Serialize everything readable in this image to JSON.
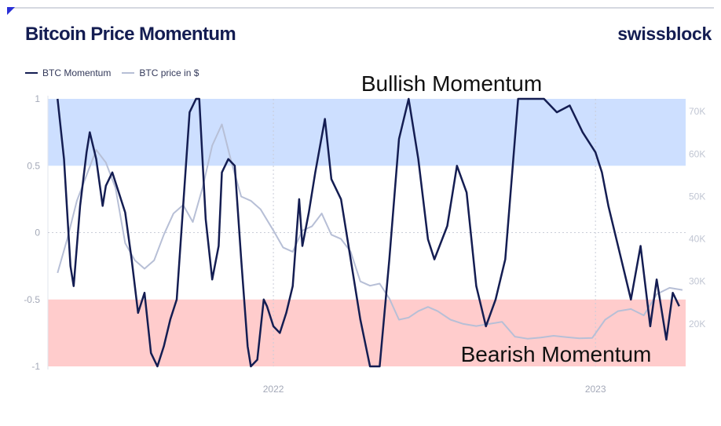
{
  "header": {
    "title": "Bitcoin Price Momentum",
    "brand": "swissblock"
  },
  "legend": [
    {
      "label": "BTC Momentum",
      "color": "#141d52"
    },
    {
      "label": "BTC price in $",
      "color": "#b7bfd6"
    }
  ],
  "colors": {
    "bullish_zone": "#cddfff",
    "bearish_zone": "#ffcccc",
    "momentum_line": "#141d52",
    "price_line": "#b7bfd6"
  },
  "chart_data": {
    "type": "line",
    "annotations": {
      "top": "Bullish Momentum",
      "bottom": "Bearish Momentum"
    },
    "zones": [
      {
        "name": "Bullish Momentum",
        "from": 0.5,
        "to": 1
      },
      {
        "name": "Bearish Momentum",
        "from": -1,
        "to": -0.5
      }
    ],
    "x_range": [
      2021.3,
      2023.28
    ],
    "x_ticks": [
      {
        "value": 2022.0,
        "label": "2022"
      },
      {
        "value": 2023.0,
        "label": "2023"
      }
    ],
    "y_left": {
      "range": [
        -1,
        1
      ],
      "ticks": [
        {
          "value": 1,
          "label": "1"
        },
        {
          "value": 0.5,
          "label": "0.5"
        },
        {
          "value": 0,
          "label": "0"
        },
        {
          "value": -0.5,
          "label": "-0.5"
        },
        {
          "value": -1,
          "label": "-1"
        }
      ]
    },
    "y_right": {
      "range": [
        10000,
        73000
      ],
      "ticks": [
        {
          "value": 20000,
          "label": "20K"
        },
        {
          "value": 30000,
          "label": "30K"
        },
        {
          "value": 40000,
          "label": "40K"
        },
        {
          "value": 50000,
          "label": "50K"
        },
        {
          "value": 60000,
          "label": "60K"
        },
        {
          "value": 70000,
          "label": "70K"
        }
      ]
    },
    "grid": {
      "vertical": true,
      "zero_line": true
    },
    "series": [
      {
        "name": "BTC Momentum",
        "axis": "left",
        "x": [
          2021.33,
          2021.35,
          2021.37,
          2021.38,
          2021.4,
          2021.42,
          2021.43,
          2021.45,
          2021.47,
          2021.48,
          2021.5,
          2021.52,
          2021.54,
          2021.56,
          2021.58,
          2021.6,
          2021.62,
          2021.64,
          2021.66,
          2021.68,
          2021.7,
          2021.72,
          2021.74,
          2021.76,
          2021.77,
          2021.79,
          2021.81,
          2021.83,
          2021.84,
          2021.86,
          2021.88,
          2021.9,
          2021.92,
          2021.93,
          2021.95,
          2021.97,
          2021.98,
          2022.0,
          2022.02,
          2022.04,
          2022.06,
          2022.08,
          2022.09,
          2022.11,
          2022.13,
          2022.16,
          2022.18,
          2022.21,
          2022.24,
          2022.27,
          2022.3,
          2022.33,
          2022.36,
          2022.39,
          2022.42,
          2022.45,
          2022.48,
          2022.5,
          2022.54,
          2022.57,
          2022.6,
          2022.63,
          2022.66,
          2022.69,
          2022.72,
          2022.76,
          2022.8,
          2022.84,
          2022.88,
          2022.92,
          2022.96,
          2023.0,
          2023.02,
          2023.04,
          2023.07,
          2023.09,
          2023.11,
          2023.14,
          2023.17,
          2023.19,
          2023.22,
          2023.24,
          2023.26
        ],
        "values": [
          1.0,
          0.55,
          -0.25,
          -0.4,
          0.2,
          0.6,
          0.75,
          0.55,
          0.2,
          0.35,
          0.45,
          0.3,
          0.15,
          -0.2,
          -0.6,
          -0.45,
          -0.9,
          -1.0,
          -0.85,
          -0.65,
          -0.5,
          0.2,
          0.9,
          1.0,
          1.0,
          0.1,
          -0.35,
          -0.1,
          0.45,
          0.55,
          0.5,
          -0.2,
          -0.85,
          -1.0,
          -0.95,
          -0.5,
          -0.55,
          -0.7,
          -0.75,
          -0.6,
          -0.4,
          0.25,
          -0.1,
          0.15,
          0.45,
          0.85,
          0.4,
          0.25,
          -0.2,
          -0.65,
          -1.0,
          -1.0,
          -0.2,
          0.7,
          1.0,
          0.55,
          -0.05,
          -0.2,
          0.05,
          0.5,
          0.3,
          -0.4,
          -0.7,
          -0.5,
          -0.2,
          1.0,
          1.0,
          1.0,
          0.9,
          0.95,
          0.75,
          0.6,
          0.45,
          0.2,
          -0.1,
          -0.3,
          -0.5,
          -0.1,
          -0.7,
          -0.35,
          -0.8,
          -0.45,
          -0.55
        ]
      },
      {
        "name": "BTC price in $",
        "axis": "right",
        "x": [
          2021.33,
          2021.36,
          2021.39,
          2021.42,
          2021.45,
          2021.48,
          2021.51,
          2021.54,
          2021.57,
          2021.6,
          2021.63,
          2021.66,
          2021.69,
          2021.72,
          2021.75,
          2021.78,
          2021.81,
          2021.84,
          2021.87,
          2021.9,
          2021.93,
          2021.96,
          2022.0,
          2022.03,
          2022.06,
          2022.09,
          2022.12,
          2022.15,
          2022.18,
          2022.21,
          2022.24,
          2022.27,
          2022.3,
          2022.33,
          2022.36,
          2022.39,
          2022.42,
          2022.45,
          2022.48,
          2022.51,
          2022.55,
          2022.59,
          2022.63,
          2022.67,
          2022.71,
          2022.75,
          2022.79,
          2022.83,
          2022.87,
          2022.91,
          2022.95,
          2022.99,
          2023.03,
          2023.07,
          2023.11,
          2023.15,
          2023.19,
          2023.23,
          2023.27
        ],
        "values": [
          32000,
          40000,
          49000,
          55000,
          61000,
          58000,
          52000,
          39000,
          35000,
          33000,
          35000,
          41000,
          46000,
          48000,
          44000,
          52000,
          62000,
          67000,
          58000,
          50000,
          49000,
          47000,
          42000,
          38000,
          37000,
          42000,
          43000,
          46000,
          41000,
          40000,
          37000,
          30000,
          29000,
          29500,
          26000,
          21000,
          21500,
          23000,
          24000,
          23000,
          21000,
          20000,
          19500,
          20000,
          20500,
          17000,
          16500,
          16800,
          17200,
          16900,
          16600,
          16700,
          21000,
          23000,
          23500,
          22000,
          27000,
          28500,
          28000
        ]
      }
    ]
  }
}
